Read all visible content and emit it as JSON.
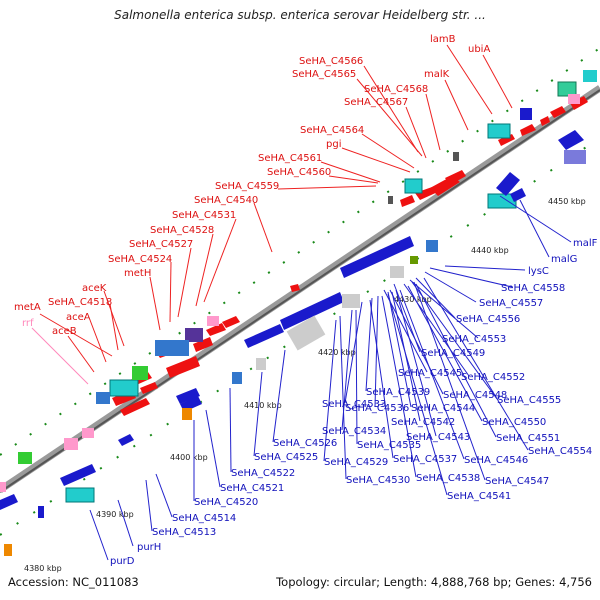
{
  "title": "Salmonella enterica subsp. enterica serovar Heidelberg str. ...",
  "accession": "Accession: NC_011083",
  "topology": "Topology: circular; Length: 4,888,768 bp; Genes: 4,756",
  "colors": {
    "forward_label": "#dd1111",
    "reverse_label": "#1111bb",
    "rna_label": "#ff88bb",
    "backbone": "#888888"
  },
  "kbp_ticks": [
    "4380 kbp",
    "4390 kbp",
    "4400 kbp",
    "4410 kbp",
    "4420 kbp",
    "4430 kbp",
    "4440 kbp",
    "4450 kbp"
  ],
  "forward_labels": [
    {
      "text": "lamB",
      "color": "red"
    },
    {
      "text": "ubiA",
      "color": "red"
    },
    {
      "text": "SeHA_C4566",
      "color": "red"
    },
    {
      "text": "SeHA_C4565",
      "color": "red"
    },
    {
      "text": "SeHA_C4568",
      "color": "red"
    },
    {
      "text": "malK",
      "color": "red"
    },
    {
      "text": "SeHA_C4567",
      "color": "red"
    },
    {
      "text": "SeHA_C4564",
      "color": "red"
    },
    {
      "text": "pgi",
      "color": "red"
    },
    {
      "text": "SeHA_C4561",
      "color": "red"
    },
    {
      "text": "SeHA_C4560",
      "color": "red"
    },
    {
      "text": "SeHA_C4559",
      "color": "red"
    },
    {
      "text": "SeHA_C4540",
      "color": "red"
    },
    {
      "text": "SeHA_C4531",
      "color": "red"
    },
    {
      "text": "SeHA_C4528",
      "color": "red"
    },
    {
      "text": "SeHA_C4527",
      "color": "red"
    },
    {
      "text": "SeHA_C4524",
      "color": "red"
    },
    {
      "text": "metH",
      "color": "red"
    },
    {
      "text": "aceK",
      "color": "red"
    },
    {
      "text": "metA",
      "color": "red"
    },
    {
      "text": "SeHA_C4518",
      "color": "red"
    },
    {
      "text": "aceA",
      "color": "red"
    },
    {
      "text": "rrf",
      "color": "pink"
    },
    {
      "text": "aceB",
      "color": "red"
    }
  ],
  "reverse_labels": [
    {
      "text": "malF"
    },
    {
      "text": "malG"
    },
    {
      "text": "lysC"
    },
    {
      "text": "SeHA_C4558"
    },
    {
      "text": "SeHA_C4557"
    },
    {
      "text": "SeHA_C4556"
    },
    {
      "text": "SeHA_C4553"
    },
    {
      "text": "SeHA_C4549"
    },
    {
      "text": "SeHA_C4545"
    },
    {
      "text": "SeHA_C4552"
    },
    {
      "text": "SeHA_C4539"
    },
    {
      "text": "SeHA_C4548"
    },
    {
      "text": "SeHA_C4555"
    },
    {
      "text": "SeHA_C4533"
    },
    {
      "text": "SeHA_C4536"
    },
    {
      "text": "SeHA_C4544"
    },
    {
      "text": "SeHA_C4550"
    },
    {
      "text": "SeHA_C4542"
    },
    {
      "text": "SeHA_C4534"
    },
    {
      "text": "SeHA_C4543"
    },
    {
      "text": "SeHA_C4551"
    },
    {
      "text": "SeHA_C4526"
    },
    {
      "text": "SeHA_C4535"
    },
    {
      "text": "SeHA_C4554"
    },
    {
      "text": "SeHA_C4525"
    },
    {
      "text": "SeHA_C4529"
    },
    {
      "text": "SeHA_C4537"
    },
    {
      "text": "SeHA_C4546"
    },
    {
      "text": "SeHA_C4522"
    },
    {
      "text": "SeHA_C4530"
    },
    {
      "text": "SeHA_C4538"
    },
    {
      "text": "SeHA_C4547"
    },
    {
      "text": "SeHA_C4521"
    },
    {
      "text": "SeHA_C4541"
    },
    {
      "text": "SeHA_C4520"
    },
    {
      "text": "SeHA_C4514"
    },
    {
      "text": "SeHA_C4513"
    },
    {
      "text": "purH"
    },
    {
      "text": "purD"
    }
  ]
}
